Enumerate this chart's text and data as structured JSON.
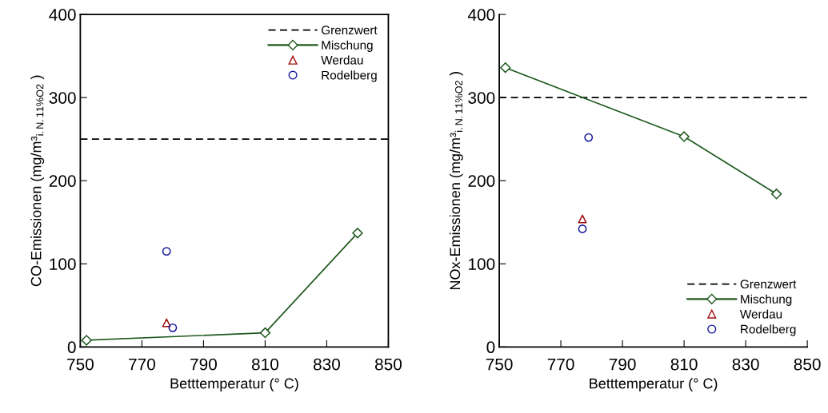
{
  "chart_data": [
    {
      "type": "line",
      "xlabel": "Betttemperatur (° C)",
      "ylabel": "CO-Emissionen (mg/m³$_{i.N.11%O2}$ )",
      "xlim": [
        750,
        850
      ],
      "xticks": [
        750,
        770,
        790,
        810,
        830,
        850
      ],
      "ylim": [
        0,
        400
      ],
      "yticks": [
        0,
        100,
        200,
        300,
        400
      ],
      "grid": false,
      "legend": "top right",
      "ref_lines": [
        {
          "axis": "y",
          "value": 250,
          "label": "Grenzwert",
          "color": "#000000",
          "line_style": "dashed"
        }
      ],
      "series": [
        {
          "name": "Mischung",
          "color": "#1f5a1f",
          "marker": "diamond",
          "line_style": "solid",
          "x": [
            752,
            810,
            840
          ],
          "values": [
            8,
            17,
            137
          ]
        },
        {
          "name": "Werdau",
          "type": "scatter",
          "color": "#a01010",
          "marker": "triangle",
          "x": [
            778
          ],
          "values": [
            29
          ]
        },
        {
          "name": "Rodelberg",
          "type": "scatter",
          "color": "#1a1aa0",
          "marker": "circle",
          "x": [
            778,
            780
          ],
          "values": [
            115,
            23
          ]
        }
      ]
    },
    {
      "type": "line",
      "xlabel": "Betttemperatur (° C)",
      "ylabel": "NOx-Emissionen (mg/m³$_{i.N.11%O2}$ )",
      "xlim": [
        750,
        850
      ],
      "xticks": [
        750,
        770,
        790,
        810,
        830,
        850
      ],
      "ylim": [
        0,
        400
      ],
      "yticks": [
        0,
        100,
        200,
        300,
        400
      ],
      "grid": false,
      "legend": "bottom right",
      "ref_lines": [
        {
          "axis": "y",
          "value": 300,
          "label": "Grenzwert",
          "color": "#000000",
          "line_style": "dashed"
        }
      ],
      "series": [
        {
          "name": "Mischung",
          "color": "#1f5a1f",
          "marker": "diamond",
          "line_style": "solid",
          "x": [
            752,
            810,
            840
          ],
          "values": [
            336,
            253,
            184
          ]
        },
        {
          "name": "Werdau",
          "type": "scatter",
          "color": "#a01010",
          "marker": "triangle",
          "x": [
            777
          ],
          "values": [
            154
          ]
        },
        {
          "name": "Rodelberg",
          "type": "scatter",
          "color": "#1a1aa0",
          "marker": "circle",
          "x": [
            777,
            779
          ],
          "values": [
            142,
            252
          ]
        }
      ]
    }
  ]
}
